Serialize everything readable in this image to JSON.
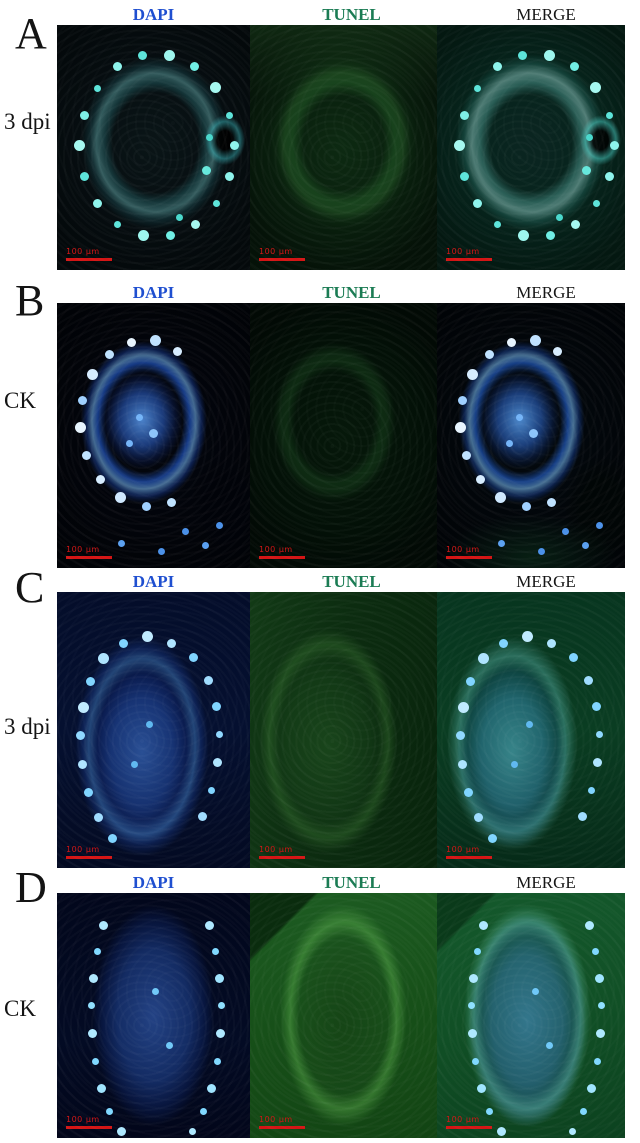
{
  "colors": {
    "dapi_label": "#1f4fd0",
    "tunel_label": "#1b7c54",
    "merge_label": "#161616",
    "scale_bar": "#d41414",
    "panel_text": "#141414"
  },
  "scale_bar_text": "100 μm",
  "panels": [
    {
      "letter": "A",
      "condition": "3 dpi",
      "columns": [
        "DAPI",
        "TUNEL",
        "MERGE"
      ]
    },
    {
      "letter": "B",
      "condition": "CK",
      "columns": [
        "DAPI",
        "TUNEL",
        "MERGE"
      ]
    },
    {
      "letter": "C",
      "condition": "3 dpi",
      "columns": [
        "DAPI",
        "TUNEL",
        "MERGE"
      ]
    },
    {
      "letter": "D",
      "condition": "CK",
      "columns": [
        "DAPI",
        "TUNEL",
        "MERGE"
      ]
    }
  ]
}
